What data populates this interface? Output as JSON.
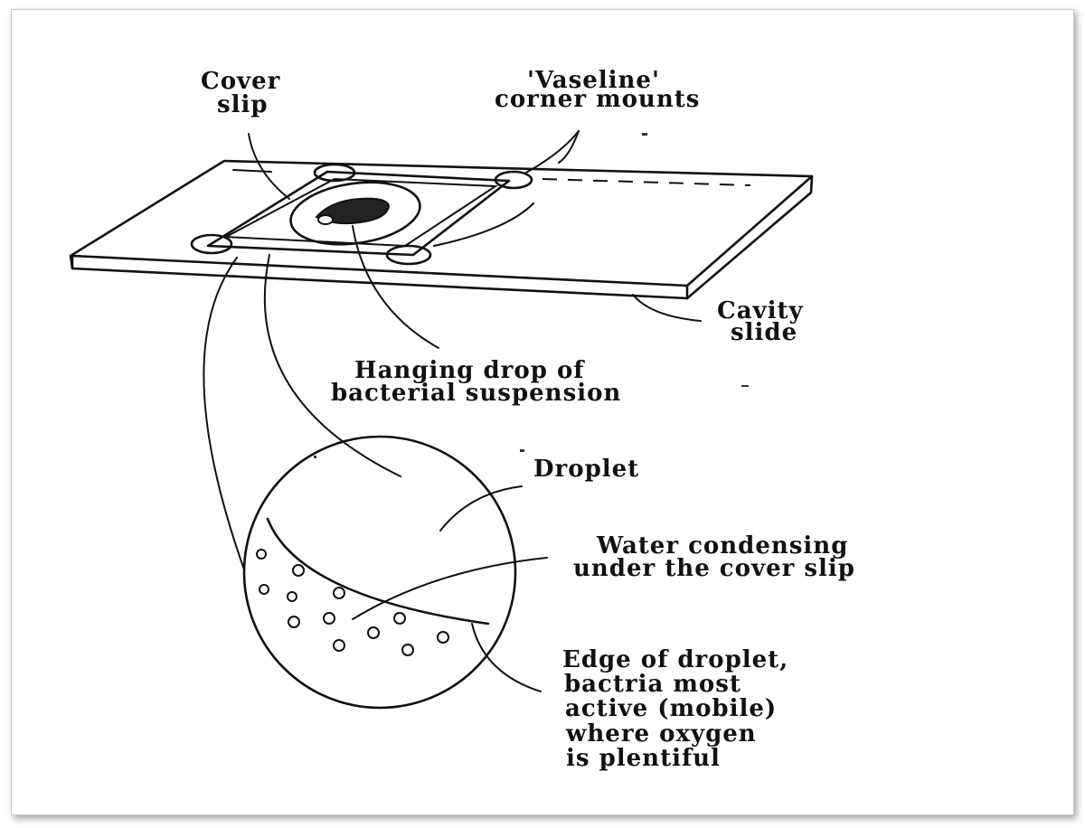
{
  "labels": {
    "cover_slip": [
      "Cover",
      "slip"
    ],
    "vaseline": [
      "'Vaseline'",
      "corner mounts"
    ],
    "cavity_slide": [
      "Cavity",
      "slide"
    ],
    "hanging_drop": [
      "Hanging drop of",
      "bacterial suspension"
    ],
    "droplet": [
      "Droplet"
    ],
    "water_condensing": [
      "Water condensing",
      "under the cover slip"
    ],
    "edge_of_droplet": [
      "Edge of droplet,",
      "bactria most",
      "active (mobile)",
      "where oxygen",
      "is plentiful"
    ]
  }
}
